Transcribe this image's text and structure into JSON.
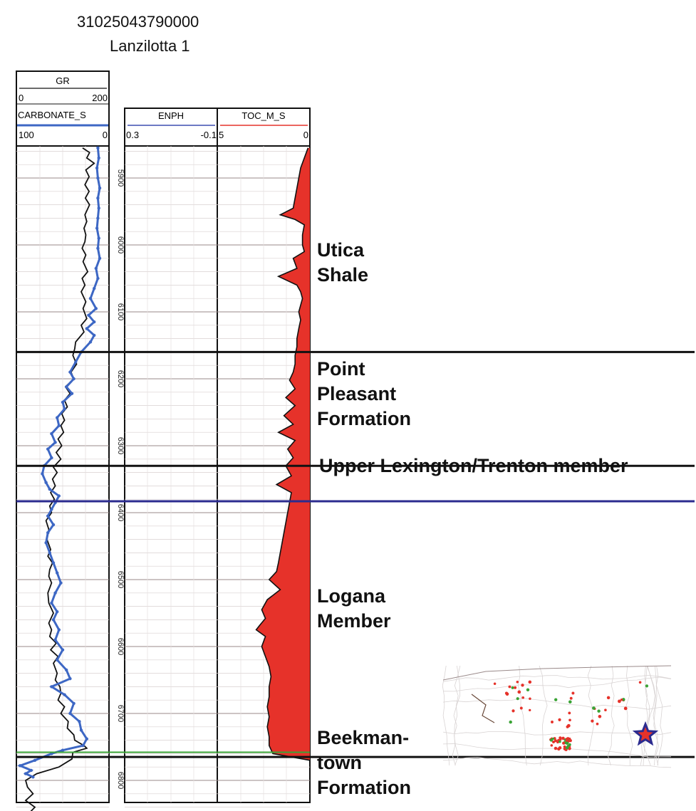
{
  "well": {
    "api_number": "31025043790000",
    "name": "Lanzilotta 1"
  },
  "colors": {
    "gr": "#111111",
    "carbonate": "#3d67c4",
    "enph_header": "#3d4fb0",
    "toc_fill": "#e6322a",
    "toc_header": "#e6322a",
    "upper_lexington_line": "#2b2b8f",
    "green_marker": "#3aa335",
    "map_star_fill": "#e6322a",
    "map_star_stroke": "#2b2b8f"
  },
  "tracks": {
    "gr": {
      "name": "GR",
      "min_label": "0",
      "max_label": "200"
    },
    "carbonate": {
      "name": "CARBONATE_S",
      "left_label": "100",
      "right_label": "0"
    },
    "enph": {
      "name": "ENPH",
      "left_label": "0.3",
      "right_label": "-0.1"
    },
    "toc": {
      "name": "TOC_M_S",
      "left_label": "5",
      "right_label": "0"
    }
  },
  "formations": {
    "utica": [
      "Utica",
      "Shale"
    ],
    "point_pleasant": [
      "Point",
      "Pleasant",
      "Formation"
    ],
    "upper_lexington": [
      "Upper Lexington/Trenton member"
    ],
    "logana": [
      "Logana",
      "Member"
    ],
    "beekmantown": [
      "Beekman-",
      "town",
      "Formation"
    ]
  },
  "chart_data": {
    "type": "line",
    "title": "31025043790000 Lanzilotta 1",
    "depth_axis": {
      "label": "",
      "range": [
        5850,
        6880
      ],
      "ticks": [
        5900,
        6000,
        6100,
        6200,
        6300,
        6400,
        6500,
        6600,
        6700,
        6800
      ],
      "direction": "down"
    },
    "series": [
      {
        "name": "GR",
        "units_range": [
          0,
          200
        ],
        "depth": [
          5855,
          5862,
          5870,
          5878,
          5888,
          5898,
          5910,
          5920,
          5930,
          5940,
          5955,
          5965,
          5975,
          5985,
          5995,
          6005,
          6015,
          6025,
          6040,
          6050,
          6060,
          6070,
          6085,
          6095,
          6110,
          6120,
          6130,
          6145,
          6155,
          6165,
          6178,
          6190,
          6200,
          6212,
          6222,
          6232,
          6242,
          6252,
          6262,
          6270,
          6280,
          6290,
          6300,
          6310,
          6320,
          6332,
          6340,
          6350,
          6360,
          6370,
          6380,
          6390,
          6400,
          6412,
          6425,
          6440,
          6455,
          6465,
          6475,
          6485,
          6495,
          6505,
          6520,
          6535,
          6550,
          6565,
          6575,
          6585,
          6595,
          6605,
          6615,
          6625,
          6640,
          6650,
          6660,
          6670,
          6680,
          6690,
          6700,
          6712,
          6722,
          6732,
          6740,
          6748,
          6752,
          6758,
          6768,
          6780,
          6790,
          6800,
          6810,
          6820,
          6830,
          6840,
          6850,
          6860,
          6870
        ],
        "values": [
          143,
          158,
          152,
          168,
          150,
          157,
          148,
          157,
          149,
          158,
          148,
          152,
          146,
          150,
          148,
          142,
          150,
          144,
          154,
          142,
          148,
          140,
          150,
          144,
          152,
          140,
          146,
          128,
          126,
          122,
          130,
          118,
          124,
          106,
          116,
          104,
          110,
          98,
          104,
          96,
          102,
          90,
          98,
          86,
          96,
          80,
          88,
          78,
          84,
          74,
          82,
          72,
          76,
          64,
          70,
          66,
          74,
          68,
          78,
          72,
          70,
          76,
          68,
          70,
          80,
          70,
          76,
          72,
          86,
          74,
          90,
          80,
          88,
          84,
          94,
          96,
          90,
          104,
          96,
          112,
          110,
          124,
          126,
          146,
          152,
          122,
          120,
          92,
          44,
          20,
          24,
          36,
          20,
          40,
          26,
          34,
          28
        ]
      },
      {
        "name": "CARBONATE_S",
        "units_range": [
          100,
          0
        ],
        "depth": [
          5855,
          5870,
          5885,
          5900,
          5915,
          5930,
          5945,
          5960,
          5975,
          5990,
          6005,
          6020,
          6035,
          6050,
          6065,
          6080,
          6095,
          6105,
          6115,
          6125,
          6135,
          6145,
          6160,
          6175,
          6190,
          6200,
          6212,
          6222,
          6235,
          6245,
          6258,
          6270,
          6282,
          6295,
          6305,
          6318,
          6330,
          6342,
          6355,
          6365,
          6375,
          6385,
          6395,
          6405,
          6418,
          6430,
          6445,
          6460,
          6475,
          6490,
          6505,
          6520,
          6535,
          6548,
          6560,
          6575,
          6590,
          6605,
          6620,
          6635,
          6648,
          6660,
          6672,
          6685,
          6700,
          6712,
          6725,
          6738,
          6748,
          6755,
          6760,
          6770,
          6778,
          6785,
          6790,
          6795
        ],
        "values": [
          12,
          11,
          13,
          12,
          10,
          12,
          11,
          12,
          13,
          11,
          12,
          10,
          14,
          12,
          16,
          20,
          14,
          22,
          16,
          24,
          16,
          20,
          30,
          36,
          42,
          38,
          46,
          40,
          50,
          48,
          56,
          54,
          62,
          58,
          66,
          62,
          70,
          72,
          68,
          64,
          54,
          58,
          62,
          66,
          60,
          66,
          68,
          64,
          60,
          56,
          52,
          58,
          62,
          56,
          60,
          54,
          58,
          50,
          56,
          46,
          42,
          62,
          48,
          38,
          42,
          32,
          30,
          24,
          28,
          50,
          62,
          80,
          96,
          84,
          90,
          82
        ]
      },
      {
        "name": "TOC_M_S",
        "units_range": [
          5,
          0
        ],
        "depth": [
          5855,
          5870,
          5885,
          5900,
          5915,
          5930,
          5945,
          5955,
          5962,
          5970,
          5985,
          6000,
          6010,
          6020,
          6035,
          6047,
          6060,
          6070,
          6080,
          6090,
          6100,
          6112,
          6125,
          6140,
          6152,
          6165,
          6178,
          6190,
          6202,
          6215,
          6228,
          6240,
          6255,
          6268,
          6280,
          6292,
          6305,
          6318,
          6330,
          6345,
          6358,
          6370,
          6385,
          6400,
          6415,
          6430,
          6445,
          6460,
          6475,
          6488,
          6500,
          6515,
          6530,
          6545,
          6558,
          6568,
          6575,
          6585,
          6600,
          6615,
          6630,
          6645,
          6660,
          6675,
          6690,
          6705,
          6720,
          6735,
          6748,
          6760,
          6770
        ],
        "values": [
          0.1,
          0.3,
          0.5,
          0.6,
          0.7,
          0.8,
          0.9,
          1.6,
          0.8,
          0.3,
          0.4,
          0.4,
          0.3,
          0.9,
          0.7,
          1.7,
          0.7,
          0.5,
          0.4,
          0.5,
          0.6,
          0.5,
          0.6,
          0.7,
          0.7,
          0.8,
          0.8,
          0.9,
          1.1,
          0.8,
          1.3,
          0.8,
          1.4,
          0.9,
          1.7,
          0.8,
          1.2,
          0.9,
          1.3,
          1.0,
          1.8,
          1.0,
          1.1,
          1.2,
          1.3,
          1.4,
          1.5,
          1.6,
          1.7,
          1.8,
          2.2,
          1.6,
          2.3,
          2.6,
          2.4,
          2.7,
          2.9,
          2.4,
          2.6,
          2.4,
          2.2,
          2.1,
          2.2,
          2.2,
          2.3,
          2.2,
          2.3,
          2.2,
          2.2,
          2.0,
          0.0
        ]
      }
    ],
    "formation_tops": [
      {
        "name": "Point Pleasant Formation",
        "depth": 6160
      },
      {
        "name": "Upper Lexington/Trenton member",
        "depth": 6330
      },
      {
        "name": "Logana Member",
        "depth": 6383
      },
      {
        "name": "Beekmantown Formation",
        "depth": 6765
      }
    ]
  }
}
